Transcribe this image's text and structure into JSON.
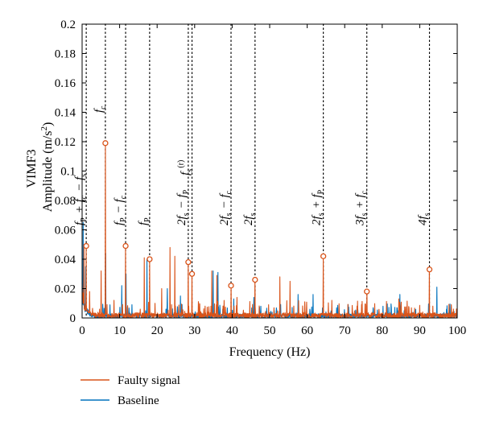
{
  "chart_data": {
    "type": "line",
    "xlabel": "Frequency (Hz)",
    "ylabel_top": "VIMF3",
    "ylabel": "Amplitude (m/s²)",
    "xlim": [
      0,
      100
    ],
    "ylim": [
      0,
      0.2
    ],
    "x_ticks": [
      0,
      10,
      20,
      30,
      40,
      50,
      60,
      70,
      80,
      90,
      100
    ],
    "y_ticks": [
      0,
      0.02,
      0.04,
      0.06,
      0.08,
      0.1,
      0.12,
      0.14,
      0.16,
      0.18,
      0.2
    ],
    "x_tick_labels": [
      "0",
      "10",
      "20",
      "30",
      "40",
      "50",
      "60",
      "70",
      "80",
      "90",
      "100"
    ],
    "y_tick_labels": [
      "0",
      "0.02",
      "0.04",
      "0.06",
      "0.08",
      "0.1",
      "0.12",
      "0.14",
      "0.16",
      "0.18",
      "0.2"
    ],
    "grid": false,
    "legend_placement": "bottom-left, below axes",
    "series": [
      {
        "name": "Faulty signal",
        "color": "#d95319",
        "peaks": [
          {
            "x": 0.5,
            "y": 0.05
          },
          {
            "x": 1.1,
            "y": 0.049
          },
          {
            "x": 2.0,
            "y": 0.018
          },
          {
            "x": 5.1,
            "y": 0.032
          },
          {
            "x": 6.2,
            "y": 0.119
          },
          {
            "x": 8.5,
            "y": 0.012
          },
          {
            "x": 11.6,
            "y": 0.049
          },
          {
            "x": 16.6,
            "y": 0.041
          },
          {
            "x": 18.0,
            "y": 0.04
          },
          {
            "x": 21.2,
            "y": 0.02
          },
          {
            "x": 23.4,
            "y": 0.048
          },
          {
            "x": 24.7,
            "y": 0.042
          },
          {
            "x": 28.3,
            "y": 0.038
          },
          {
            "x": 29.3,
            "y": 0.03
          },
          {
            "x": 34.6,
            "y": 0.032
          },
          {
            "x": 35.9,
            "y": 0.029
          },
          {
            "x": 39.7,
            "y": 0.022
          },
          {
            "x": 41.3,
            "y": 0.014
          },
          {
            "x": 46.1,
            "y": 0.026
          },
          {
            "x": 52.7,
            "y": 0.028
          },
          {
            "x": 55.4,
            "y": 0.025
          },
          {
            "x": 64.3,
            "y": 0.042
          },
          {
            "x": 66.6,
            "y": 0.012
          },
          {
            "x": 75.9,
            "y": 0.018
          },
          {
            "x": 84.4,
            "y": 0.013
          },
          {
            "x": 92.6,
            "y": 0.033
          },
          {
            "x": 98.4,
            "y": 0.009
          }
        ]
      },
      {
        "name": "Baseline",
        "color": "#0072bd",
        "peaks": [
          {
            "x": 0.3,
            "y": 0.065
          },
          {
            "x": 0.9,
            "y": 0.035
          },
          {
            "x": 6.3,
            "y": 0.044
          },
          {
            "x": 10.6,
            "y": 0.022
          },
          {
            "x": 11.7,
            "y": 0.03
          },
          {
            "x": 17.3,
            "y": 0.04
          },
          {
            "x": 22.7,
            "y": 0.02
          },
          {
            "x": 26.2,
            "y": 0.015
          },
          {
            "x": 34.9,
            "y": 0.032
          },
          {
            "x": 36.2,
            "y": 0.031
          },
          {
            "x": 40.4,
            "y": 0.013
          },
          {
            "x": 45.8,
            "y": 0.014
          },
          {
            "x": 57.6,
            "y": 0.016
          },
          {
            "x": 61.6,
            "y": 0.016
          },
          {
            "x": 70.9,
            "y": 0.009
          },
          {
            "x": 80.2,
            "y": 0.008
          },
          {
            "x": 84.7,
            "y": 0.016
          },
          {
            "x": 94.6,
            "y": 0.021
          }
        ]
      }
    ],
    "markers": [
      {
        "x": 1.1,
        "y": 0.049
      },
      {
        "x": 6.2,
        "y": 0.119
      },
      {
        "x": 11.6,
        "y": 0.049
      },
      {
        "x": 18.0,
        "y": 0.04
      },
      {
        "x": 28.3,
        "y": 0.038
      },
      {
        "x": 29.3,
        "y": 0.03
      },
      {
        "x": 39.7,
        "y": 0.022
      },
      {
        "x": 46.1,
        "y": 0.026
      },
      {
        "x": 64.3,
        "y": 0.042
      },
      {
        "x": 75.9,
        "y": 0.018
      },
      {
        "x": 92.6,
        "y": 0.033
      }
    ],
    "annotations": [
      {
        "x": 1.1,
        "tex": "f_P + f_c − f_s"
      },
      {
        "x": 6.2,
        "tex": "f_c"
      },
      {
        "x": 11.6,
        "tex": "f_P − f_c"
      },
      {
        "x": 18.0,
        "tex": "f_P"
      },
      {
        "x": 28.3,
        "tex": "2f_s − f_P"
      },
      {
        "x": 29.3,
        "tex": "f_s^(r)"
      },
      {
        "x": 39.7,
        "tex": "2f_s − f_c"
      },
      {
        "x": 46.1,
        "tex": "2f_s"
      },
      {
        "x": 64.3,
        "tex": "2f_s + f_P"
      },
      {
        "x": 75.9,
        "tex": "3f_s + f_c"
      },
      {
        "x": 92.6,
        "tex": "4f_s"
      }
    ]
  }
}
